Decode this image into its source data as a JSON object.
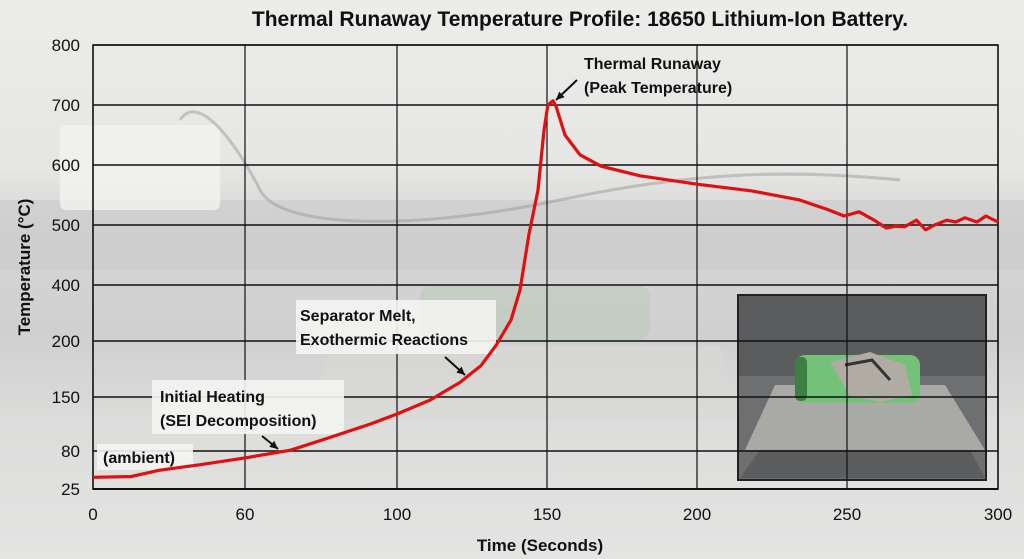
{
  "chart_data": {
    "type": "line",
    "title": "Thermal Runaway Temperature Profile: 18650 Lithium-Ion Battery.",
    "xlabel": "Time (Seconds)",
    "ylabel": "Temperature (°C)",
    "x_ticks": [
      0,
      60,
      100,
      150,
      200,
      250,
      300
    ],
    "y_ticks": [
      25,
      80,
      150,
      200,
      400,
      500,
      600,
      700,
      800
    ],
    "xlim": [
      0,
      300
    ],
    "ylim": [
      25,
      800
    ],
    "axis_scale_note": "tick labels evenly spaced (non-linear axes)",
    "grid": true,
    "line_color": "#e01010",
    "series": [
      {
        "x": [
          0,
          15,
          26,
          42,
          60,
          72,
          82,
          93,
          100,
          111,
          121,
          128,
          133,
          138,
          141,
          144,
          147,
          149,
          150.3,
          152,
          153,
          156,
          161,
          168,
          181,
          200,
          218,
          234,
          244,
          249,
          254,
          259,
          263,
          266,
          269,
          273,
          276,
          279,
          283,
          286,
          289,
          293,
          296,
          300
        ],
        "y": [
          42,
          43,
          52,
          60,
          70,
          81,
          97,
          115,
          128,
          146,
          163,
          178,
          196,
          275,
          382,
          485,
          558,
          658,
          700,
          707,
          698,
          650,
          617,
          598,
          582,
          568,
          557,
          542,
          525,
          515,
          522,
          508,
          495,
          498,
          497,
          508,
          492,
          500,
          508,
          505,
          512,
          505,
          515,
          505
        ]
      }
    ],
    "annotations": [
      {
        "lines": [
          "Thermal Runaway",
          "(Peak Temperature)"
        ],
        "points_to": [
          152,
          707
        ]
      },
      {
        "lines": [
          "Separator Melt,",
          "Exothermic Reactions"
        ],
        "points_to": [
          123,
          165
        ]
      },
      {
        "lines": [
          "Initial Heating",
          "(SEI Decomposition)"
        ],
        "points_to": [
          73,
          80
        ]
      },
      {
        "lines": [
          "(ambient)"
        ]
      }
    ],
    "inset_photo": "damaged green 18650 cell on metal plate"
  }
}
